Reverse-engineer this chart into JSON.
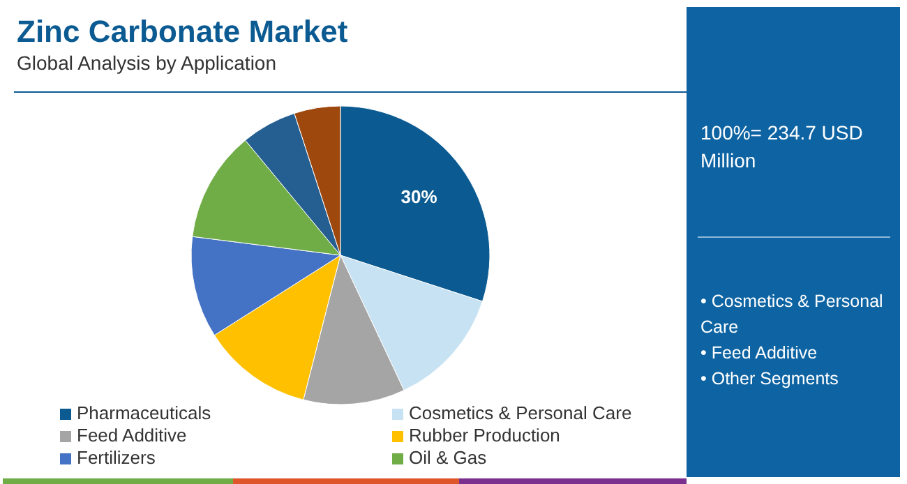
{
  "chart_data": {
    "type": "pie",
    "title": "Zinc Carbonate Market",
    "subtitle": "Global Analysis by Application",
    "categories": [
      "Pharmaceuticals",
      "Cosmetics & Personal Care",
      "Feed Additive",
      "Rubber Production",
      "Fertilizers",
      "Oil & Gas",
      null,
      null
    ],
    "values": [
      30,
      13,
      11,
      12,
      11,
      12,
      6,
      5
    ],
    "colors": [
      "#0b5b92",
      "#c7e2f2",
      "#a5a5a5",
      "#ffc000",
      "#4472c4",
      "#70ad47",
      "#255e91",
      "#9e480e"
    ],
    "value_labels": [
      "30%",
      null,
      null,
      null,
      null,
      null,
      null,
      null
    ],
    "legend": "bottom",
    "annotations": [
      "100%= 234.7 USD Million",
      "• Cosmetics & Personal Care",
      "• Feed Additive",
      "• Other Segments"
    ]
  }
}
